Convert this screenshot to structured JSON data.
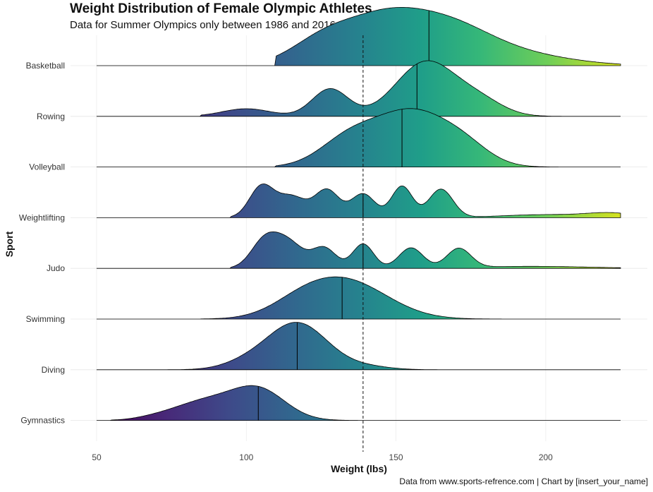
{
  "title": "Weight Distribution of Female Olympic Athletes",
  "subtitle": "Data for Summer Olympics only between 1986 and 2016",
  "caption": "Data from www.sports-refrence.com | Chart by [insert_your_name]",
  "chart_data": {
    "type": "ridgeline",
    "xlabel": "Weight (lbs)",
    "ylabel": "Sport",
    "xlim": [
      50,
      225
    ],
    "xticks": [
      50,
      100,
      150,
      200
    ],
    "reference_line": {
      "x": 139,
      "style": "dashed"
    },
    "color_scale": "viridis",
    "grid": "horizontal only",
    "series": [
      {
        "name": "Basketball",
        "median": 161,
        "range": [
          110,
          225
        ],
        "peaks": [
          {
            "x": 126,
            "w": 11,
            "h": 0.52
          },
          {
            "x": 145,
            "w": 12,
            "h": 0.66
          },
          {
            "x": 165,
            "w": 15,
            "h": 0.78
          },
          {
            "x": 190,
            "w": 18,
            "h": 0.21
          }
        ]
      },
      {
        "name": "Rowing",
        "median": 157,
        "range": [
          85,
          205
        ],
        "peaks": [
          {
            "x": 100,
            "w": 8,
            "h": 0.15
          },
          {
            "x": 128,
            "w": 6,
            "h": 0.54
          },
          {
            "x": 160,
            "w": 10,
            "h": 1.07
          },
          {
            "x": 178,
            "w": 8,
            "h": 0.28
          }
        ]
      },
      {
        "name": "Volleyball",
        "median": 152,
        "range": [
          110,
          205
        ],
        "peaks": [
          {
            "x": 135,
            "w": 10,
            "h": 0.59
          },
          {
            "x": 155,
            "w": 11,
            "h": 1.0
          },
          {
            "x": 172,
            "w": 9,
            "h": 0.42
          }
        ]
      },
      {
        "name": "Weightlifting",
        "median": 139,
        "range": [
          95,
          225
        ],
        "peaks": [
          {
            "x": 105,
            "w": 4,
            "h": 0.6
          },
          {
            "x": 115,
            "w": 5,
            "h": 0.42
          },
          {
            "x": 127,
            "w": 4,
            "h": 0.54
          },
          {
            "x": 139,
            "w": 4,
            "h": 0.47
          },
          {
            "x": 152,
            "w": 3.5,
            "h": 0.62
          },
          {
            "x": 165,
            "w": 4,
            "h": 0.56
          },
          {
            "x": 200,
            "w": 15,
            "h": 0.06
          },
          {
            "x": 222,
            "w": 8,
            "h": 0.08
          }
        ]
      },
      {
        "name": "Judo",
        "median": 139,
        "range": [
          95,
          225
        ],
        "peaks": [
          {
            "x": 106,
            "w": 4.5,
            "h": 0.52
          },
          {
            "x": 114,
            "w": 5,
            "h": 0.5
          },
          {
            "x": 126,
            "w": 4,
            "h": 0.4
          },
          {
            "x": 139,
            "w": 3.5,
            "h": 0.48
          },
          {
            "x": 155,
            "w": 4,
            "h": 0.4
          },
          {
            "x": 171,
            "w": 4,
            "h": 0.38
          },
          {
            "x": 195,
            "w": 20,
            "h": 0.04
          }
        ]
      },
      {
        "name": "Swimming",
        "median": 132,
        "range": [
          85,
          205
        ],
        "peaks": [
          {
            "x": 133,
            "w": 14,
            "h": 0.75
          },
          {
            "x": 118,
            "w": 10,
            "h": 0.2
          }
        ]
      },
      {
        "name": "Diving",
        "median": 117,
        "range": [
          60,
          170
        ],
        "peaks": [
          {
            "x": 117,
            "w": 10,
            "h": 0.92
          },
          {
            "x": 100,
            "w": 8,
            "h": 0.12
          },
          {
            "x": 140,
            "w": 8,
            "h": 0.06
          }
        ]
      },
      {
        "name": "Gymnastics",
        "median": 104,
        "range": [
          55,
          160
        ],
        "peaks": [
          {
            "x": 104,
            "w": 9,
            "h": 0.6
          },
          {
            "x": 86,
            "w": 10,
            "h": 0.36
          },
          {
            "x": 70,
            "w": 7,
            "h": 0.05
          }
        ]
      }
    ]
  }
}
